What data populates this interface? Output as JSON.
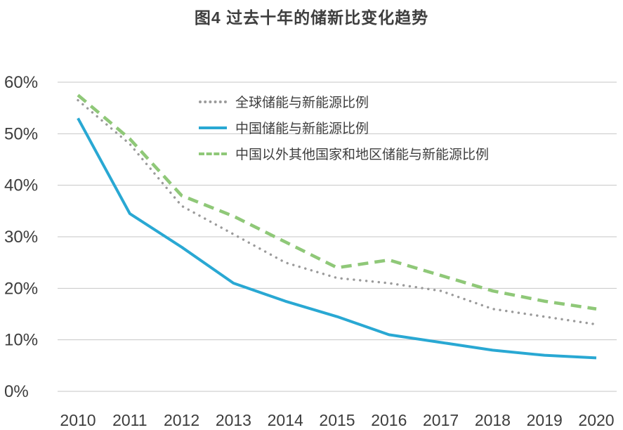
{
  "chart_data": {
    "type": "line",
    "title": "图4 过去十年的储新比变化趋势",
    "xlabel": "",
    "ylabel": "",
    "categories": [
      "2010",
      "2011",
      "2012",
      "2013",
      "2014",
      "2015",
      "2016",
      "2017",
      "2018",
      "2019",
      "2020"
    ],
    "series": [
      {
        "id": "global",
        "name": "全球储能与新能源比例",
        "color": "#9b9b9b",
        "style": "dotted",
        "values": [
          56.5,
          48,
          36,
          30.5,
          25,
          22,
          21,
          19.5,
          16,
          14.5,
          13
        ]
      },
      {
        "id": "china",
        "name": "中国储能与新能源比例",
        "color": "#29a8d3",
        "style": "solid",
        "values": [
          53,
          34.5,
          28,
          21,
          17.5,
          14.5,
          11,
          9.5,
          8,
          7,
          6.5
        ]
      },
      {
        "id": "non-china",
        "name": "中国以外其他国家和地区储能与新能源比例",
        "color": "#8fc878",
        "style": "dashed",
        "values": [
          57.5,
          49,
          38,
          34,
          29,
          24,
          25.5,
          22.5,
          19.5,
          17.5,
          16
        ]
      }
    ],
    "ylim": [
      0,
      60
    ],
    "ytick_step": 10,
    "ytick_suffix": "%",
    "grid": true,
    "legend_position": "upper-center-inside",
    "grid_color": "#c6c6c6",
    "text_color": "#3d3d3d"
  }
}
